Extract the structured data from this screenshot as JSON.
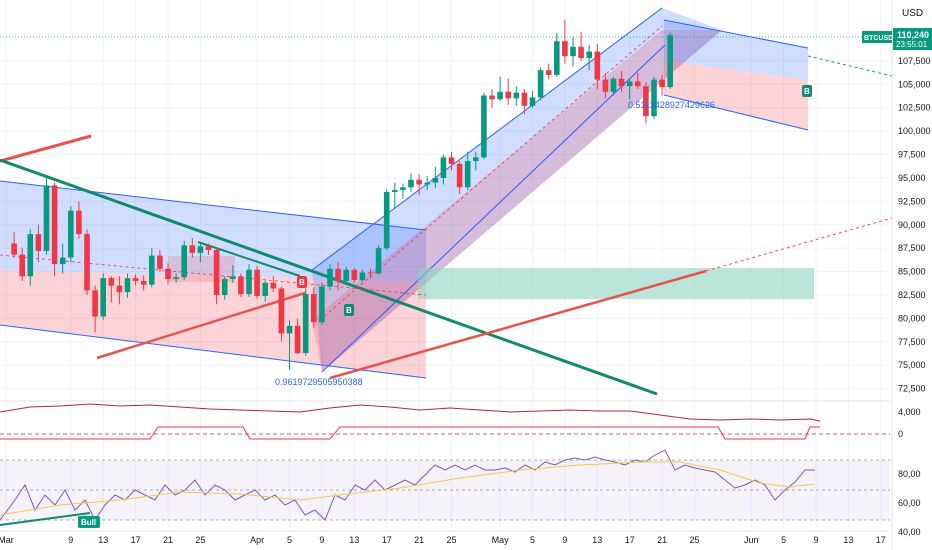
{
  "chart_data": {
    "type": "candlestick",
    "symbol": "BTCUSD",
    "currency": "USD",
    "last_price": "110,240",
    "countdown": "23:55:01",
    "price_axis": {
      "ylim": [
        71500,
        114000
      ],
      "ticks": [
        "72,500",
        "75,000",
        "77,500",
        "80,000",
        "82,500",
        "85,000",
        "87,500",
        "90,000",
        "92,500",
        "95,000",
        "97,500",
        "100,000",
        "102,500",
        "105,000",
        "107,500"
      ]
    },
    "date_ticks": [
      {
        "label": "Mar",
        "day": 0
      },
      {
        "label": "9",
        "day": 8
      },
      {
        "label": "13",
        "day": 12
      },
      {
        "label": "17",
        "day": 16
      },
      {
        "label": "21",
        "day": 20
      },
      {
        "label": "25",
        "day": 24
      },
      {
        "label": "Apr",
        "day": 31
      },
      {
        "label": "5",
        "day": 35
      },
      {
        "label": "9",
        "day": 39
      },
      {
        "label": "13",
        "day": 43
      },
      {
        "label": "17",
        "day": 47
      },
      {
        "label": "21",
        "day": 51
      },
      {
        "label": "25",
        "day": 55
      },
      {
        "label": "May",
        "day": 61
      },
      {
        "label": "5",
        "day": 65
      },
      {
        "label": "9",
        "day": 69
      },
      {
        "label": "13",
        "day": 73
      },
      {
        "label": "17",
        "day": 77
      },
      {
        "label": "21",
        "day": 81
      },
      {
        "label": "25",
        "day": 85
      },
      {
        "label": "Jun",
        "day": 92
      },
      {
        "label": "5",
        "day": 96
      },
      {
        "label": "9",
        "day": 100
      },
      {
        "label": "13",
        "day": 104
      },
      {
        "label": "17",
        "day": 108
      }
    ],
    "candles": [
      [
        88000,
        89200,
        86500,
        86800
      ],
      [
        86800,
        87500,
        84000,
        84500
      ],
      [
        84500,
        89500,
        83500,
        89000
      ],
      [
        89000,
        90000,
        86000,
        87200
      ],
      [
        87200,
        95000,
        86800,
        94200
      ],
      [
        94200,
        94500,
        84500,
        85800
      ],
      [
        85800,
        88000,
        84800,
        86500
      ],
      [
        86500,
        92000,
        86000,
        91500
      ],
      [
        91500,
        92500,
        88500,
        89000
      ],
      [
        89000,
        89500,
        82500,
        83000
      ],
      [
        83000,
        83500,
        78500,
        80200
      ],
      [
        80200,
        84800,
        79800,
        84300
      ],
      [
        84300,
        84500,
        81700,
        83500
      ],
      [
        83500,
        84500,
        81500,
        82800
      ],
      [
        82800,
        84800,
        82200,
        84300
      ],
      [
        84300,
        84700,
        83500,
        84000
      ],
      [
        84000,
        84600,
        83000,
        83600
      ],
      [
        83600,
        87500,
        83300,
        86700
      ],
      [
        86700,
        87300,
        85000,
        85300
      ],
      [
        85300,
        85900,
        83600,
        84200
      ],
      [
        84200,
        84800,
        83800,
        84400
      ],
      [
        84400,
        88300,
        84100,
        87800
      ],
      [
        87800,
        88600,
        86500,
        87000
      ],
      [
        87000,
        88000,
        86000,
        87700
      ],
      [
        87700,
        88000,
        86800,
        87300
      ],
      [
        87300,
        87600,
        81500,
        82500
      ],
      [
        82500,
        84500,
        82000,
        84200
      ],
      [
        84200,
        85700,
        83800,
        84500
      ],
      [
        84500,
        84800,
        82300,
        82600
      ],
      [
        82600,
        85800,
        82300,
        85200
      ],
      [
        85200,
        85600,
        82100,
        82400
      ],
      [
        82400,
        84000,
        81800,
        83800
      ],
      [
        83800,
        84500,
        82800,
        83200
      ],
      [
        83200,
        83400,
        77500,
        78400
      ],
      [
        78400,
        79800,
        74500,
        79200
      ],
      [
        79200,
        80000,
        76200,
        76300
      ],
      [
        76300,
        83200,
        76000,
        82600
      ],
      [
        82600,
        83300,
        79000,
        79600
      ],
      [
        79600,
        83800,
        79300,
        83400
      ],
      [
        83400,
        85800,
        83000,
        85300
      ],
      [
        85300,
        86000,
        83000,
        84000
      ],
      [
        84000,
        85500,
        83600,
        85200
      ],
      [
        85200,
        85400,
        83800,
        84100
      ],
      [
        84100,
        85200,
        83900,
        84900
      ],
      [
        84900,
        85300,
        84300,
        84800
      ],
      [
        84800,
        87800,
        84700,
        87500
      ],
      [
        87500,
        93800,
        87300,
        93500
      ],
      [
        93500,
        94500,
        91700,
        93700
      ],
      [
        93700,
        94400,
        92800,
        94000
      ],
      [
        94000,
        95500,
        93500,
        94800
      ],
      [
        94800,
        95400,
        93200,
        94300
      ],
      [
        94300,
        95200,
        93700,
        94500
      ],
      [
        94500,
        96200,
        93900,
        95000
      ],
      [
        95000,
        97500,
        94300,
        97200
      ],
      [
        97200,
        97800,
        95800,
        96500
      ],
      [
        96500,
        96800,
        93300,
        94000
      ],
      [
        94000,
        97800,
        93700,
        96800
      ],
      [
        96800,
        97800,
        95800,
        97200
      ],
      [
        97200,
        104100,
        97000,
        103800
      ],
      [
        103800,
        104500,
        102500,
        103400
      ],
      [
        103400,
        105800,
        103200,
        104200
      ],
      [
        104200,
        105600,
        102800,
        103500
      ],
      [
        103500,
        104800,
        102700,
        104100
      ],
      [
        104100,
        104500,
        101800,
        102700
      ],
      [
        102700,
        104300,
        102500,
        103600
      ],
      [
        103600,
        106800,
        103300,
        106500
      ],
      [
        106500,
        107200,
        105500,
        106000
      ],
      [
        106000,
        110500,
        105800,
        109600
      ],
      [
        109600,
        111900,
        107200,
        108000
      ],
      [
        108000,
        110000,
        106900,
        109000
      ],
      [
        109000,
        110600,
        107500,
        107800
      ],
      [
        107800,
        109200,
        106500,
        108500
      ],
      [
        108500,
        109300,
        104500,
        105500
      ],
      [
        105500,
        106200,
        103500,
        104200
      ],
      [
        104200,
        105800,
        103800,
        105600
      ],
      [
        105600,
        106400,
        104200,
        104800
      ],
      [
        104800,
        105600,
        103400,
        105300
      ],
      [
        105300,
        106200,
        104500,
        104800
      ],
      [
        104800,
        105200,
        100800,
        101600
      ],
      [
        101600,
        105800,
        101300,
        105500
      ],
      [
        105500,
        106000,
        103800,
        104700
      ],
      [
        104700,
        110500,
        104500,
        110240
      ]
    ],
    "rsi_ticks": [
      "80,00",
      "60,00",
      "40,00"
    ],
    "macd_ticks": [
      "4,000",
      "0"
    ],
    "annotations": {
      "channel_low_label": "0.9619729505950388",
      "channel_high_label": "0.5113428927429626",
      "signal_b": "B",
      "bull_label": "Bull"
    },
    "colors": {
      "up": "#089981",
      "down": "#f23645",
      "channel_blue": "#2962ff",
      "trend_red": "#e8524a",
      "trend_green": "#0f8a6a",
      "zone": "#8fd3bf"
    }
  }
}
